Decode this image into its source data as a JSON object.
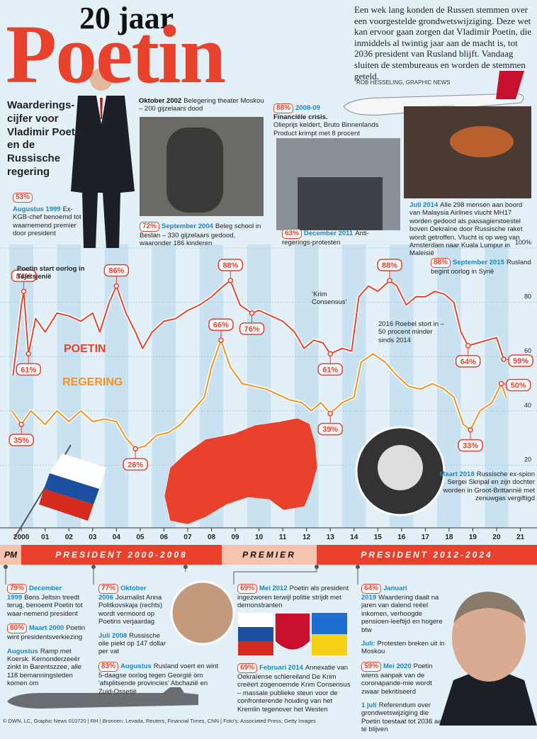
{
  "header": {
    "title_small": "20 jaar",
    "title_big": "Poetin",
    "intro": "Een wek lang konden de Russen stemmen over een voorgestelde grondwetswijziging. Deze wet kan ervoor gaan zorgen dat Vladimir Poetin, die inmiddels al twintig jaar aan de macht is, tot 2036 president van Rusland blijft. Vandaag sluiten de stembureaus en worden de stemmen geteld.",
    "credit": "ROB HESSELING, GRAPHIC NEWS",
    "subtitle": "Waarderings­cijfer voor Vladimir Poetin en de Russische regering"
  },
  "chart_data": {
    "type": "line",
    "xlim": [
      1999.1,
      2021.7
    ],
    "ylim": [
      0,
      100
    ],
    "xticks": [
      {
        "value": 2000,
        "label": "2000"
      },
      {
        "value": 2001,
        "label": "01"
      },
      {
        "value": 2002,
        "label": "02"
      },
      {
        "value": 2003,
        "label": "03"
      },
      {
        "value": 2004,
        "label": "04"
      },
      {
        "value": 2005,
        "label": "05"
      },
      {
        "value": 2006,
        "label": "06"
      },
      {
        "value": 2007,
        "label": "07"
      },
      {
        "value": 2008,
        "label": "08"
      },
      {
        "value": 2009,
        "label": "09"
      },
      {
        "value": 2010,
        "label": "10"
      },
      {
        "value": 2011,
        "label": "11"
      },
      {
        "value": 2012,
        "label": "12"
      },
      {
        "value": 2013,
        "label": "13"
      },
      {
        "value": 2014,
        "label": "14"
      },
      {
        "value": 2015,
        "label": "15"
      },
      {
        "value": 2016,
        "label": "16"
      },
      {
        "value": 2017,
        "label": "17"
      },
      {
        "value": 2018,
        "label": "18"
      },
      {
        "value": 2019,
        "label": "19"
      },
      {
        "value": 2020,
        "label": "20"
      },
      {
        "value": 2021,
        "label": "21"
      }
    ],
    "yticks": [
      20,
      40,
      60,
      80,
      {
        "value": 100,
        "label": "100%"
      }
    ],
    "series": [
      {
        "name": "POETIN",
        "color": "#e8412c",
        "x": [
          1999.65,
          2000.0,
          2000.1,
          2000.3,
          2000.6,
          2001.0,
          2001.5,
          2002.0,
          2002.5,
          2003.0,
          2003.3,
          2003.7,
          2004.0,
          2004.4,
          2004.8,
          2005.1,
          2005.5,
          2006.0,
          2006.5,
          2007.0,
          2007.5,
          2008.0,
          2008.5,
          2008.8,
          2009.2,
          2009.7,
          2010.0,
          2010.5,
          2011.0,
          2011.5,
          2011.9,
          2012.3,
          2012.7,
          2013.0,
          2013.5,
          2013.9,
          2014.2,
          2014.6,
          2015.0,
          2015.5,
          2015.8,
          2016.2,
          2016.6,
          2017.0,
          2017.4,
          2017.8,
          2018.2,
          2018.5,
          2018.8,
          2019.2,
          2019.6,
          2020.0,
          2020.3
        ],
        "values": [
          53,
          79,
          84,
          61,
          74,
          69,
          76,
          75,
          73,
          76,
          69,
          80,
          86,
          76,
          69,
          63,
          69,
          73,
          74,
          77,
          79,
          82,
          86,
          88,
          79,
          76,
          77,
          75,
          73,
          69,
          63,
          66,
          65,
          61,
          63,
          62,
          82,
          86,
          84,
          88,
          86,
          79,
          82,
          82,
          84,
          83,
          80,
          69,
          64,
          65,
          66,
          67,
          59
        ],
        "callouts": [
          {
            "x": 2000.1,
            "value": 84,
            "label": "84%"
          },
          {
            "x": 2000.3,
            "value": 61,
            "label": "61%"
          },
          {
            "x": 2004.0,
            "value": 86,
            "label": "86%"
          },
          {
            "x": 2008.8,
            "value": 88,
            "label": "88%"
          },
          {
            "x": 2009.7,
            "value": 76,
            "label": "76%"
          },
          {
            "x": 2013.0,
            "value": 61,
            "label": "61%"
          },
          {
            "x": 2015.5,
            "value": 88,
            "label": "88%"
          },
          {
            "x": 2018.8,
            "value": 64,
            "label": "64%"
          },
          {
            "x": 2020.3,
            "value": 59,
            "label": "59%"
          }
        ]
      },
      {
        "name": "REGERING",
        "color": "#f39221",
        "x": [
          1999.6,
          2000.0,
          2000.4,
          2001.0,
          2001.5,
          2002.0,
          2002.5,
          2003.0,
          2003.5,
          2004.0,
          2004.4,
          2004.8,
          2005.2,
          2005.7,
          2006.2,
          2006.7,
          2007.2,
          2007.7,
          2008.0,
          2008.4,
          2008.8,
          2009.3,
          2009.8,
          2010.3,
          2010.8,
          2011.3,
          2011.8,
          2012.2,
          2012.6,
          2013.0,
          2013.5,
          2014.0,
          2014.3,
          2014.8,
          2015.3,
          2015.8,
          2016.3,
          2016.8,
          2017.3,
          2017.8,
          2018.2,
          2018.6,
          2018.9,
          2019.3,
          2019.8,
          2020.2,
          2020.4
        ],
        "values": [
          40,
          35,
          40,
          35,
          40,
          36,
          40,
          36,
          37,
          36,
          30,
          26,
          27,
          31,
          32,
          35,
          40,
          45,
          56,
          66,
          56,
          50,
          49,
          48,
          46,
          44,
          43,
          40,
          43,
          39,
          43,
          45,
          58,
          61,
          58,
          53,
          49,
          48,
          50,
          48,
          45,
          35,
          33,
          40,
          43,
          50,
          45
        ],
        "callouts": [
          {
            "x": 2000.0,
            "value": 35,
            "label": "35%"
          },
          {
            "x": 2004.8,
            "value": 26,
            "label": "26%"
          },
          {
            "x": 2008.4,
            "value": 66,
            "label": "66%"
          },
          {
            "x": 2013.0,
            "value": 39,
            "label": "39%"
          },
          {
            "x": 2018.9,
            "value": 33,
            "label": "33%"
          },
          {
            "x": 2020.2,
            "value": 50,
            "label": "50%"
          }
        ]
      }
    ]
  },
  "top_notes": [
    {
      "pct": "53%",
      "date": "Augustus 1999",
      "text": "Ex-KGB-chef benoemd tot waarnemend premier door president"
    },
    {
      "date": "Oktober 2002",
      "text": "Belegering theater Moskou – 200 gijzelaars dood"
    },
    {
      "pct": "72%",
      "date": "September 2004",
      "text": "Beleg school in Beslan – 330 gijzelaars gedood, waaronder 186 kinderen"
    },
    {
      "pct": "88%",
      "date": "2008-09",
      "title": "Financiële crisis.",
      "text": "Olieprijs keldert, Bruto Binnenlands Product krimpt met 8 procent"
    },
    {
      "pct": "63%",
      "date": "December 2011",
      "text": "Anti-regerings-protesten"
    },
    {
      "date": "Juli 2014",
      "text": "Alle 298 mensen aan boord van Malaysia Airlines vlucht MH17 worden gedood als passagierstoestel boven Oekraïne door Russische raket wordt getroffen. Vlucht is op weg van Amsterdam naar Kuala Lumpur in Maleisië"
    },
    {
      "pct": "88%",
      "date": "September 2015",
      "text": "Rusland begint oorlog in Syrië"
    },
    {
      "text": "Poetin start oorlog in Tsjetsjenië"
    },
    {
      "text": "‘Krim Consensus’"
    },
    {
      "text": "2016 Roebel stort in – 50 procent minder sinds 2014"
    },
    {
      "date": "Maart 2018",
      "text": "Russische ex-spion Sergei Skripal en zijn dochter worden in Groot-Brittannië met zenuwgas vergiftigd"
    }
  ],
  "timeline": {
    "pm": "PM",
    "president_1": "PRESIDENT 2000-2008",
    "premier": "PREMIER",
    "president_2": "PRESIDENT 2012-2024"
  },
  "bottom_notes": [
    {
      "pct": "79%",
      "date": "December 1999",
      "text": "Boris Jeltsin treedt terug, benoemt Poetin tot waar-nemend president"
    },
    {
      "pct": "80%",
      "date": "Maart 2000",
      "text": "Poetin wint presidentsverkiezing"
    },
    {
      "date": "Augustus",
      "text": "Ramp met Koersk. Kernonderzeeër zinkt in Barentszzee, alle 118 bemanningsleden komen om"
    },
    {
      "pct": "77%",
      "date": "Oktober 2006",
      "text": "Journalist Anna Politkovskaja (rechts) wordt vermoord op Poetins verjaardag"
    },
    {
      "date": "Juli 2008",
      "text": "Russische olie piekt op 147 dollar per vat"
    },
    {
      "pct": "83%",
      "date": "Augustus",
      "text": "Rusland voert en wint 5-daagse oorlog tegen Georgië om 'afsplitsende provincies' Abchazië en Zuid-Ossetië"
    },
    {
      "pct": "69%",
      "date": "Mei 2012",
      "text": "Poetin als president ingezworen terwijl politie strijdt met demonstranten"
    },
    {
      "pct": "69%",
      "date": "Februari 2014",
      "text": "Annexatie van Oekraïense schiereiland De Krim creëert zogenoemde Krim Consensus – massale publieke steun voor de confronterende houding van het Kremlin tegenover het Westen"
    },
    {
      "pct": "64%",
      "date": "Januari 2019",
      "text": "Waardering daalt na jaren van dalend reëel inkomen, verhoogde pensioen-leeftijd en hogere btw"
    },
    {
      "date": "Juli:",
      "text": "Protesten breken uit in Moskou"
    },
    {
      "pct": "59%",
      "date": "Mei 2020",
      "text": "Poetin wiens aanpak van de coronapande-mie wordt zwaar bekritiseerd"
    },
    {
      "date": "1 juli",
      "text": "Referendum over grondwetswijziging die Poetin toestaat tot 2036 aan te blijven"
    }
  ],
  "footer": "© DWN, LC, Graphic News 010720 | RH | Bronnen: Levada, Reuters, Financial Times, CNN | Foto's: Associated Press, Getty Images"
}
